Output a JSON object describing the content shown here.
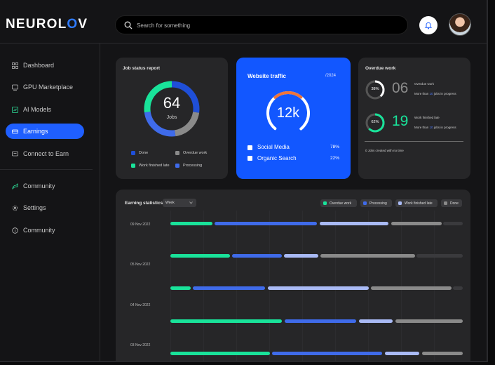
{
  "app": {
    "logo_prefix": "NEUROL",
    "logo_accent": "O",
    "logo_suffix": "V"
  },
  "search": {
    "placeholder": "Search for something"
  },
  "sidebar": {
    "items": [
      {
        "label": "Dashboard",
        "icon": "dashboard-icon"
      },
      {
        "label": "GPU Marketplace",
        "icon": "gpu-icon"
      },
      {
        "label": "AI Models",
        "icon": "ai-models-icon"
      },
      {
        "label": "Earnings",
        "icon": "earnings-icon",
        "active": true
      },
      {
        "label": "Connect to Earn",
        "icon": "connect-icon"
      },
      {
        "label": "Community",
        "icon": "community-icon"
      },
      {
        "label": "Settings",
        "icon": "settings-icon"
      },
      {
        "label": "Community",
        "icon": "community-info-icon"
      }
    ]
  },
  "job_status": {
    "title": "Job status report",
    "total": "64",
    "unit": "Jobs",
    "legend": [
      "Done",
      "Overdue work",
      "Work finished late",
      "Processing"
    ]
  },
  "traffic": {
    "title": "Website traffic",
    "period": "/2024",
    "value": "12k",
    "rows": [
      {
        "label": "Social Media",
        "value": "78%"
      },
      {
        "label": "Organic Search",
        "value": "22%"
      }
    ]
  },
  "overdue": {
    "title": "Overdue work",
    "items": [
      {
        "percent": "38%",
        "count": "06",
        "label": "Overdue work",
        "sub_prefix": "More than",
        "sub_num": "10",
        "sub_suffix": "jobs in progress"
      },
      {
        "percent": "62%",
        "count": "19",
        "label": "Work finished late",
        "sub_prefix": "More than",
        "sub_num": "10",
        "sub_suffix": "jobs in progress"
      }
    ],
    "footer": "0 Jobs created with no time"
  },
  "earning": {
    "title": "Earning statistics",
    "filter": "Week",
    "legend": [
      "Overdue work",
      "Processing",
      "Work finished late",
      "Done"
    ],
    "dates": [
      "09 Nov 2022",
      "05 Nov 2022",
      "04 Nov 2022",
      "03 Nov 2022"
    ]
  },
  "colors": {
    "green": "#19e39a",
    "blue": "#3f6bea",
    "light_blue": "#a9baf5",
    "gray": "#8a8a8a",
    "accent": "#1f5fff"
  }
}
